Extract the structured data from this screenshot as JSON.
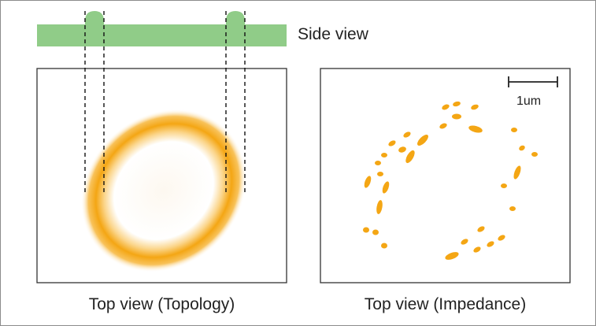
{
  "labels": {
    "side_view": "Side view",
    "topology": "Top view (Topology)",
    "impedance": "Top view (Impedance)",
    "scale_bar": "1um"
  },
  "colors": {
    "side_view_bar": "#90cc88",
    "ring": "#f4a614",
    "panel_border": "#333333",
    "guide_lines": "#111111",
    "text": "#222222"
  }
}
